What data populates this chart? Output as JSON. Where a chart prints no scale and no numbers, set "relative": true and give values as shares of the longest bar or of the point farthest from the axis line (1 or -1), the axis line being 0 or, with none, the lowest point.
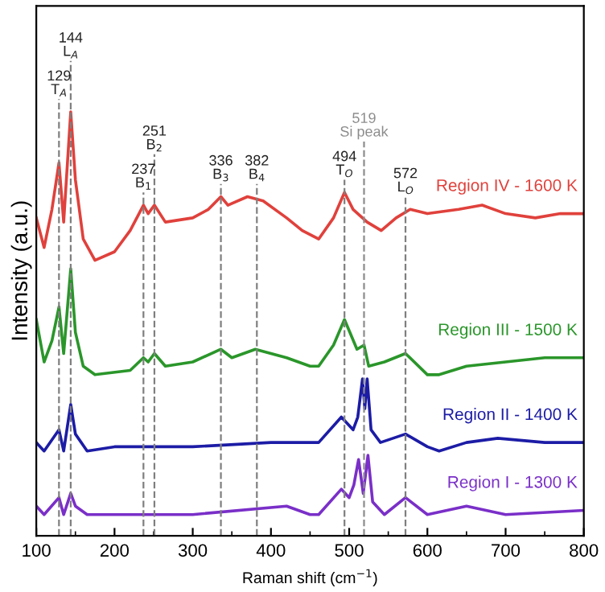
{
  "chart_data": {
    "type": "line",
    "relative": true,
    "xlabel": "Raman shift (cm$^{−1}$)",
    "ylabel": "Intensity (a.u.)",
    "xlim": [
      100,
      800
    ],
    "xticks": [
      100,
      200,
      300,
      400,
      500,
      600,
      700,
      800
    ],
    "grid": false,
    "legend": false,
    "marker": "none",
    "line_style": "solid",
    "series": [
      {
        "name": "Region IV - 1600 K",
        "color": "#e0413c",
        "x": [
          100,
          110,
          120,
          129,
          135,
          144,
          150,
          160,
          175,
          200,
          220,
          237,
          243,
          251,
          265,
          300,
          320,
          336,
          345,
          370,
          390,
          420,
          440,
          461,
          480,
          494,
          505,
          523,
          541,
          560,
          578,
          600,
          640,
          670,
          700,
          738,
          770,
          800
        ],
        "values": [
          0.75,
          0.68,
          0.77,
          0.88,
          0.74,
          1.0,
          0.84,
          0.7,
          0.65,
          0.67,
          0.72,
          0.78,
          0.76,
          0.78,
          0.74,
          0.75,
          0.77,
          0.8,
          0.78,
          0.8,
          0.79,
          0.75,
          0.72,
          0.7,
          0.75,
          0.81,
          0.77,
          0.74,
          0.72,
          0.75,
          0.77,
          0.76,
          0.77,
          0.78,
          0.76,
          0.75,
          0.76,
          0.76
        ]
      },
      {
        "name": "Region III - 1500 K",
        "color": "#2a962a",
        "x": [
          100,
          110,
          120,
          129,
          135,
          144,
          150,
          160,
          175,
          220,
          237,
          243,
          251,
          265,
          300,
          336,
          350,
          380,
          420,
          450,
          461,
          480,
          494,
          510,
          519,
          525,
          545,
          572,
          600,
          615,
          650,
          700,
          750,
          800
        ],
        "values": [
          0.51,
          0.41,
          0.46,
          0.54,
          0.43,
          0.63,
          0.48,
          0.4,
          0.38,
          0.39,
          0.42,
          0.41,
          0.43,
          0.4,
          0.41,
          0.44,
          0.42,
          0.44,
          0.42,
          0.4,
          0.4,
          0.45,
          0.51,
          0.44,
          0.45,
          0.4,
          0.41,
          0.43,
          0.38,
          0.38,
          0.4,
          0.41,
          0.42,
          0.42
        ]
      },
      {
        "name": "Region II - 1400 K",
        "color": "#1c1ca6",
        "x": [
          100,
          110,
          129,
          135,
          144,
          150,
          165,
          200,
          300,
          400,
          450,
          461,
          490,
          505,
          511,
          517,
          520,
          523,
          528,
          540,
          572,
          600,
          615,
          650,
          690,
          750,
          800
        ],
        "values": [
          0.22,
          0.2,
          0.25,
          0.2,
          0.31,
          0.24,
          0.2,
          0.21,
          0.21,
          0.22,
          0.22,
          0.22,
          0.28,
          0.25,
          0.28,
          0.37,
          0.3,
          0.37,
          0.25,
          0.22,
          0.24,
          0.21,
          0.2,
          0.22,
          0.23,
          0.22,
          0.22
        ]
      },
      {
        "name": "Region I - 1300 K",
        "color": "#7a2fc8",
        "x": [
          100,
          110,
          129,
          135,
          144,
          150,
          165,
          300,
          420,
          450,
          461,
          490,
          500,
          506,
          512,
          518,
          524,
          530,
          545,
          572,
          600,
          650,
          700,
          800
        ],
        "values": [
          0.07,
          0.05,
          0.09,
          0.05,
          0.1,
          0.07,
          0.05,
          0.05,
          0.07,
          0.05,
          0.05,
          0.11,
          0.09,
          0.12,
          0.18,
          0.1,
          0.19,
          0.08,
          0.05,
          0.09,
          0.05,
          0.07,
          0.05,
          0.06
        ]
      }
    ],
    "ref_lines": [
      {
        "axis": "x",
        "value": 129,
        "label": "129\nT$_{A}$",
        "color": "#7f7f7f",
        "line_style": "dashed"
      },
      {
        "axis": "x",
        "value": 144,
        "label": "144\nL$_{A}$",
        "color": "#7f7f7f",
        "line_style": "dashed"
      },
      {
        "axis": "x",
        "value": 237,
        "label": "237\nB$_{1}$",
        "color": "#7f7f7f",
        "line_style": "dashed"
      },
      {
        "axis": "x",
        "value": 251,
        "label": "251\nB$_{2}$",
        "color": "#7f7f7f",
        "line_style": "dashed"
      },
      {
        "axis": "x",
        "value": 336,
        "label": "336\nB$_{3}$",
        "color": "#7f7f7f",
        "line_style": "dashed"
      },
      {
        "axis": "x",
        "value": 382,
        "label": "382\nB$_{4}$",
        "color": "#7f7f7f",
        "line_style": "dashed"
      },
      {
        "axis": "x",
        "value": 494,
        "label": "494\nT$_{O}$",
        "color": "#7f7f7f",
        "line_style": "dashed"
      },
      {
        "axis": "x",
        "value": 519,
        "label": "519\nSi peak",
        "color": "#8c8c8c",
        "line_style": "dashed"
      },
      {
        "axis": "x",
        "value": 572,
        "label": "572\nL$_{O}$",
        "color": "#7f7f7f",
        "line_style": "dashed"
      }
    ]
  }
}
